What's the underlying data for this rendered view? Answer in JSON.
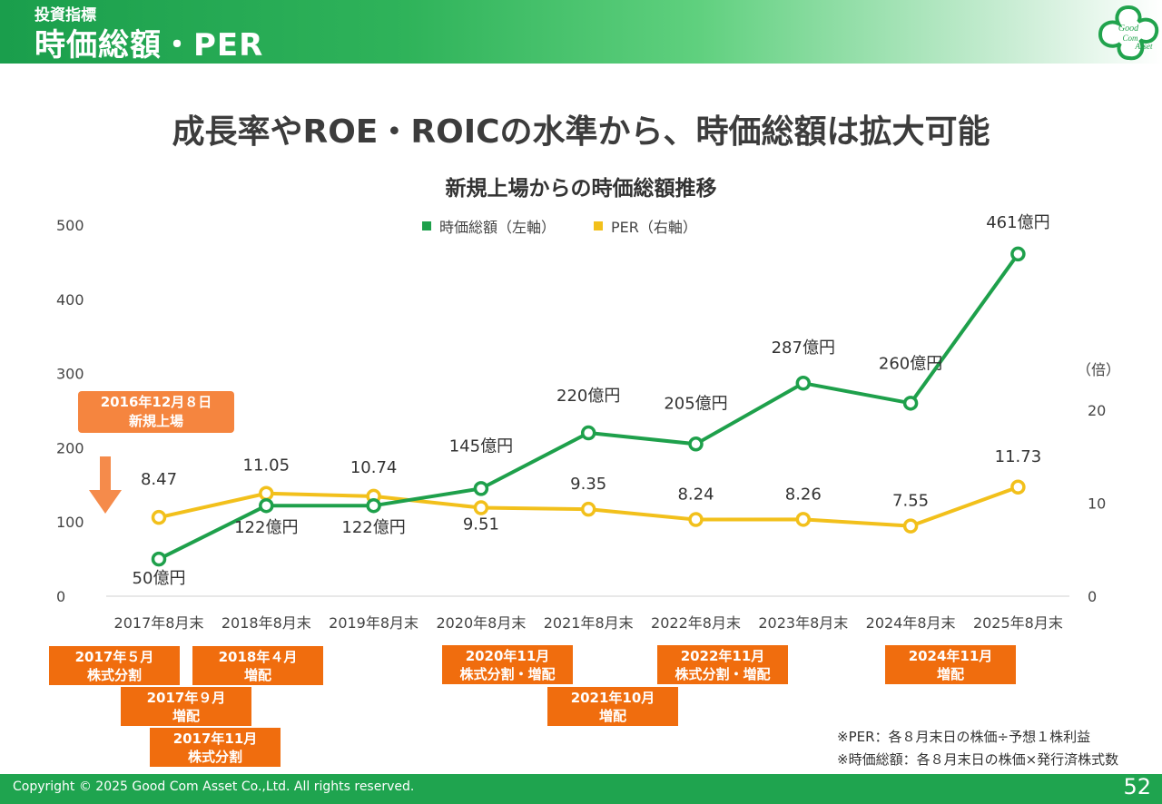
{
  "header": {
    "subtitle": "投資指標",
    "title": "時価総額・PER",
    "logo_text": [
      "Good",
      "Com",
      "Asset"
    ]
  },
  "main_title": "成長率やROE・ROICの水準から、時価総額は拡大可能",
  "colors": {
    "market_cap": "#1ea04b",
    "per": "#f2c01b",
    "event_box": "#f06d0e",
    "launch_box": "#f5853f"
  },
  "chart_data": {
    "type": "line",
    "title": "新規上場からの時価総額推移",
    "categories": [
      "2017年8月末",
      "2018年8月末",
      "2019年8月末",
      "2020年8月末",
      "2021年8月末",
      "2022年8月末",
      "2023年8月末",
      "2024年8月末",
      "2025年8月末"
    ],
    "series": [
      {
        "name": "時価総額（左軸）",
        "axis": "left",
        "values": [
          50,
          122,
          122,
          145,
          220,
          205,
          287,
          260,
          461
        ],
        "labels": [
          "50億円",
          "122億円",
          "122億円",
          "145億円",
          "220億円",
          "205億円",
          "287億円",
          "260億円",
          "461億円"
        ]
      },
      {
        "name": "PER（右軸）",
        "axis": "right",
        "values": [
          8.47,
          11.05,
          10.74,
          9.51,
          9.35,
          8.24,
          8.26,
          7.55,
          11.73
        ],
        "labels": [
          "8.47",
          "11.05",
          "10.74",
          "9.51",
          "9.35",
          "8.24",
          "8.26",
          "7.55",
          "11.73"
        ]
      }
    ],
    "left_axis": {
      "ylim": [
        0,
        500
      ],
      "ticks": [
        "0",
        "100",
        "200",
        "300",
        "400",
        "500"
      ]
    },
    "right_axis": {
      "ylim": [
        0,
        20
      ],
      "ticks": [
        "0",
        "10",
        "20"
      ],
      "unit": "（倍）"
    },
    "legend_position": "top-center",
    "grid": false
  },
  "launch": {
    "line1": "2016年12月８日",
    "line2": "新規上場"
  },
  "events": [
    {
      "line1": "2017年５月",
      "line2": "株式分割"
    },
    {
      "line1": "2017年９月",
      "line2": "増配"
    },
    {
      "line1": "2017年11月",
      "line2": "株式分割"
    },
    {
      "line1": "2018年４月",
      "line2": "増配"
    },
    {
      "line1": "2020年11月",
      "line2": "株式分割・増配"
    },
    {
      "line1": "2021年10月",
      "line2": "増配"
    },
    {
      "line1": "2022年11月",
      "line2": "株式分割・増配"
    },
    {
      "line1": "2024年11月",
      "line2": "増配"
    }
  ],
  "notes": [
    "※PER：各８月末日の株価÷予想１株利益",
    "※時価総額：各８月末日の株価×発行済株式数"
  ],
  "footer": {
    "copyright": "Copyright © 2025 Good Com Asset Co.,Ltd. All rights reserved.",
    "page": "52"
  }
}
